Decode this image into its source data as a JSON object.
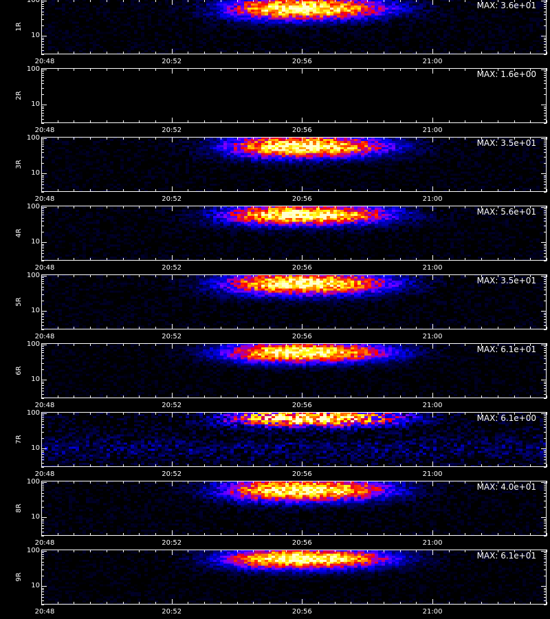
{
  "chart_data": {
    "type": "heatmap",
    "panel_count": 9,
    "x_ticks": [
      "20:48",
      "20:52",
      "20:56",
      "21:00"
    ],
    "x_tick_minutes": [
      0,
      4,
      8,
      12
    ],
    "x_range_minutes": [
      0,
      15.5
    ],
    "y_ticks": [
      "100",
      "10"
    ],
    "y_tick_values": [
      100,
      10
    ],
    "y_range": [
      3,
      110
    ],
    "y_scale": "log",
    "colormap": [
      "#000000",
      "#00006e",
      "#0000ff",
      "#8000ff",
      "#ff0000",
      "#ff8000",
      "#ffff00",
      "#ffffd0"
    ],
    "panels": [
      {
        "label": "1R",
        "max_label": "MAX: 3.6e+01",
        "max": 36,
        "center_minute": 7.6,
        "width_minutes": 2.4,
        "center_value": 60,
        "spread": 0.33,
        "noise": 0.35
      },
      {
        "label": "2R",
        "max_label": "MAX: 1.6e+00",
        "max": 1.6,
        "center_minute": 7.6,
        "width_minutes": 2.4,
        "center_value": 60,
        "spread": 0.33,
        "noise": 0.0
      },
      {
        "label": "3R",
        "max_label": "MAX: 3.5e+01",
        "max": 35,
        "center_minute": 7.6,
        "width_minutes": 2.4,
        "center_value": 58,
        "spread": 0.33,
        "noise": 0.35
      },
      {
        "label": "4R",
        "max_label": "MAX: 5.6e+01",
        "max": 56,
        "center_minute": 7.6,
        "width_minutes": 2.5,
        "center_value": 60,
        "spread": 0.3,
        "noise": 0.35
      },
      {
        "label": "5R",
        "max_label": "MAX: 3.5e+01",
        "max": 35,
        "center_minute": 7.6,
        "width_minutes": 2.5,
        "center_value": 60,
        "spread": 0.33,
        "noise": 0.35
      },
      {
        "label": "6R",
        "max_label": "MAX: 6.1e+01",
        "max": 61,
        "center_minute": 7.6,
        "width_minutes": 2.5,
        "center_value": 60,
        "spread": 0.3,
        "noise": 0.3
      },
      {
        "label": "7R",
        "max_label": "MAX: 6.1e+00",
        "max": 6.1,
        "center_minute": 7.8,
        "width_minutes": 2.6,
        "center_value": 75,
        "spread": 0.25,
        "noise": 0.6
      },
      {
        "label": "8R",
        "max_label": "MAX: 4.0e+01",
        "max": 40,
        "center_minute": 7.6,
        "width_minutes": 2.5,
        "center_value": 60,
        "spread": 0.33,
        "noise": 0.35
      },
      {
        "label": "9R",
        "max_label": "MAX: 6.1e+01",
        "max": 61,
        "center_minute": 7.6,
        "width_minutes": 2.5,
        "center_value": 60,
        "spread": 0.3,
        "noise": 0.3
      }
    ]
  }
}
